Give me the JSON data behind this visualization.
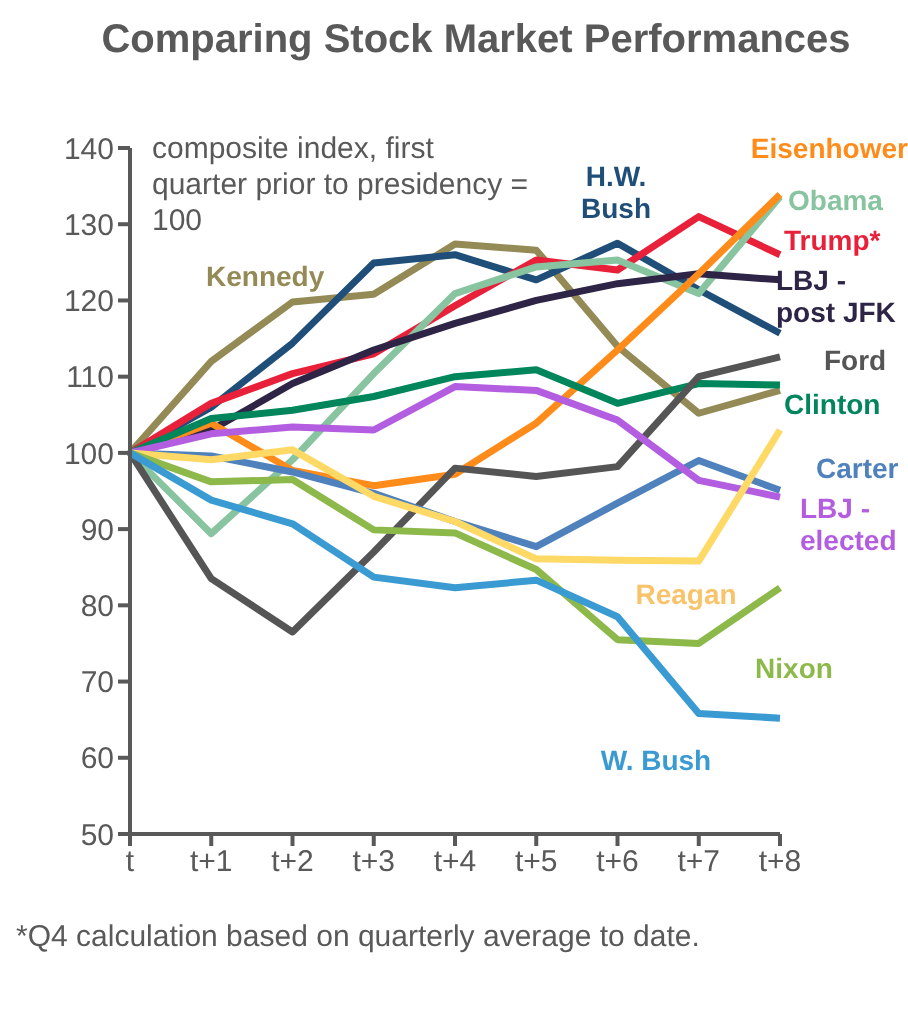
{
  "chart_data": {
    "type": "line",
    "title": "Comparing Stock Market Performances",
    "categories": [
      "t",
      "t+1",
      "t+2",
      "t+3",
      "t+4",
      "t+5",
      "t+6",
      "t+7",
      "t+8"
    ],
    "ylim": [
      50,
      140
    ],
    "yticks": [
      50,
      60,
      70,
      80,
      90,
      100,
      110,
      120,
      130,
      140
    ],
    "grid": false,
    "legend": false,
    "marker": "none",
    "line_style": "solid",
    "annotations": [
      "composite index, first quarter prior to presidency = 100",
      "*Q4 calculation based on quarterly average to date."
    ],
    "series": [
      {
        "name": "Kennedy",
        "color": "#938a55",
        "values": [
          100,
          112,
          119.8,
          120.8,
          127.4,
          126.6,
          114,
          105.2,
          108.2
        ]
      },
      {
        "name": "H.W. Bush",
        "color": "#1f4e79",
        "values": [
          100,
          106,
          114.4,
          124.9,
          126,
          122.7,
          127.5,
          121.4,
          115.7
        ]
      },
      {
        "name": "Trump*",
        "color": "#e8203a",
        "values": [
          100,
          106.5,
          110.4,
          113,
          119.3,
          125.3,
          124,
          131,
          126
        ]
      },
      {
        "name": "Obama",
        "color": "#88c4a0",
        "values": [
          100,
          89.4,
          99.1,
          110.4,
          120.9,
          124.4,
          125.3,
          120.9,
          133.6
        ]
      },
      {
        "name": "LBJ - post JFK",
        "color": "#2e2446",
        "values": [
          100,
          103,
          109.1,
          113.5,
          117,
          120,
          122.2,
          123.5,
          122.7
        ]
      },
      {
        "name": "Eisenhower",
        "color": "#ff8c1a",
        "values": [
          100,
          103.9,
          97.7,
          95.7,
          97.2,
          103.9,
          113.5,
          123.5,
          133.9
        ]
      },
      {
        "name": "Clinton",
        "color": "#00865a",
        "values": [
          100,
          104.5,
          105.6,
          107.4,
          110,
          110.9,
          106.5,
          109.1,
          108.9
        ]
      },
      {
        "name": "Ford",
        "color": "#555555",
        "values": [
          100,
          83.5,
          76.5,
          87,
          98,
          96.9,
          98.2,
          110,
          112.6
        ]
      },
      {
        "name": "Carter",
        "color": "#4f81bd",
        "values": [
          100,
          99.6,
          97.5,
          94.7,
          91,
          87.7,
          93.4,
          99,
          95.1
        ]
      },
      {
        "name": "LBJ - elected",
        "color": "#b35de0",
        "values": [
          100,
          102.5,
          103.4,
          103,
          108.7,
          108.2,
          104.3,
          96.4,
          94.2
        ]
      },
      {
        "name": "Reagan",
        "color": "#ffd966",
        "values": [
          100,
          99.1,
          100.4,
          94.3,
          91,
          86.1,
          85.9,
          85.8,
          103
        ]
      },
      {
        "name": "Nixon",
        "color": "#8db84a",
        "values": [
          100,
          96.2,
          96.5,
          89.9,
          89.5,
          84.7,
          75.5,
          75,
          82.3
        ]
      },
      {
        "name": "W. Bush",
        "color": "#3a9ad2",
        "values": [
          100,
          93.8,
          90.7,
          83.7,
          82.3,
          83.3,
          78.5,
          65.8,
          65.2
        ]
      }
    ]
  }
}
